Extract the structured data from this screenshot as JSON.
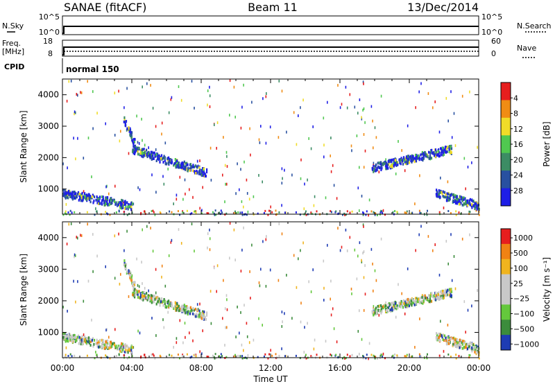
{
  "header": {
    "station": "SANAE (fitACF)",
    "beam": "Beam 11",
    "date": "13/Dec/2014"
  },
  "top_panels": {
    "nsky_label": "N.Sky",
    "nsky_ticks": [
      "10^5",
      "10^0"
    ],
    "nsearch_label": "N.Search",
    "nsearch_ticks": [
      "10^5",
      "10^0"
    ],
    "freq_label": "Freq.",
    "freq_unit": "[MHz]",
    "freq_ticks": [
      "18",
      "8"
    ],
    "nave_label": "Nave",
    "nave_ticks": [
      "60",
      "0"
    ],
    "cpid_label": "CPID",
    "cpid_value": "normal 150"
  },
  "chart_data": [
    {
      "type": "heatmap",
      "name": "power",
      "xlabel": "",
      "ylabel": "Slant Range [km]",
      "xlim": [
        "00:00",
        "24:00"
      ],
      "ylim": [
        200,
        4500
      ],
      "yticks": [
        1000,
        2000,
        3000,
        4000
      ],
      "colorbar": {
        "label": "Power [dB]",
        "tick_labels": [
          "4",
          "8",
          "12",
          "16",
          "20",
          "24",
          "28"
        ],
        "colors": [
          "#1e1ee6",
          "#2850a0",
          "#3c8c64",
          "#50c850",
          "#f0dc28",
          "#f08c14",
          "#e61e1e"
        ]
      },
      "echo_regions": [
        {
          "start_hour": 3.5,
          "end_hour": 4.3,
          "range_km_start": 3300,
          "range_km_end": 2300
        },
        {
          "start_hour": 4.0,
          "end_hour": 8.3,
          "range_km_start": 2300,
          "range_km_end": 1550
        },
        {
          "start_hour": 17.8,
          "end_hour": 22.4,
          "range_km_start": 1700,
          "range_km_end": 2300
        },
        {
          "start_hour": 0.0,
          "end_hour": 4.0,
          "range_km_start": 900,
          "range_km_end": 500
        },
        {
          "start_hour": 21.5,
          "end_hour": 24.0,
          "range_km_start": 900,
          "range_km_end": 500
        }
      ]
    },
    {
      "type": "heatmap",
      "name": "velocity",
      "xlabel": "Time UT",
      "ylabel": "Slant Range [km]",
      "xlim": [
        "00:00",
        "24:00"
      ],
      "ylim": [
        200,
        4500
      ],
      "yticks": [
        1000,
        2000,
        3000,
        4000
      ],
      "xticks": [
        "00:00",
        "04:00",
        "08:00",
        "12:00",
        "16:00",
        "20:00",
        "00:00"
      ],
      "colorbar": {
        "label": "Velocity [m s⁻¹]",
        "tick_labels": [
          "1000",
          "500",
          "100",
          "25",
          "−25",
          "−100",
          "−500",
          "−1000"
        ],
        "colors": [
          "#1e3cb4",
          "#3c8c3c",
          "#64c83c",
          "#c8c8c8",
          "#c8c8c8",
          "#f0b41e",
          "#f08214",
          "#e61e1e"
        ]
      },
      "echo_regions": [
        {
          "start_hour": 3.5,
          "end_hour": 4.3,
          "range_km_start": 3300,
          "range_km_end": 2300
        },
        {
          "start_hour": 4.0,
          "end_hour": 8.3,
          "range_km_start": 2300,
          "range_km_end": 1550
        },
        {
          "start_hour": 17.8,
          "end_hour": 22.4,
          "range_km_start": 1700,
          "range_km_end": 2300
        },
        {
          "start_hour": 0.0,
          "end_hour": 4.0,
          "range_km_start": 900,
          "range_km_end": 500
        },
        {
          "start_hour": 21.5,
          "end_hour": 24.0,
          "range_km_start": 900,
          "range_km_end": 500
        }
      ]
    }
  ]
}
